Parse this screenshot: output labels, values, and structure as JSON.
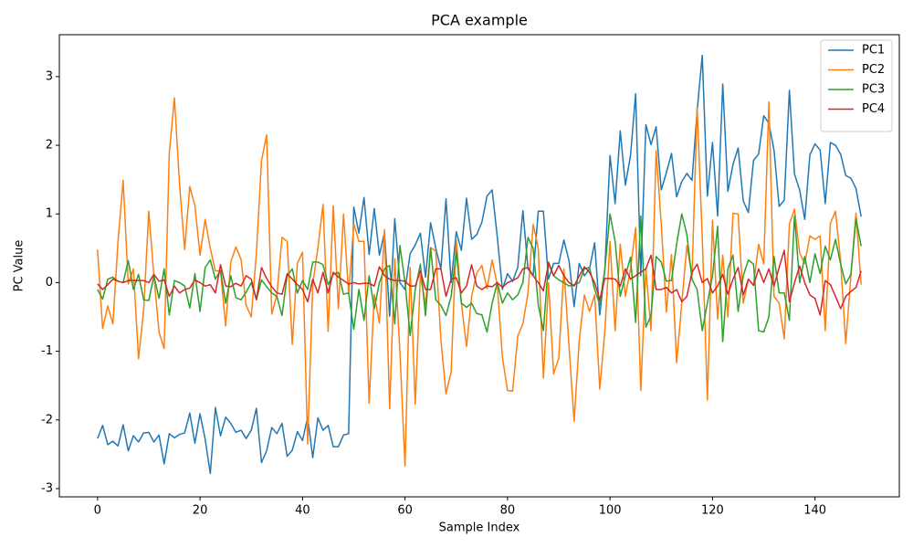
{
  "chart_data": {
    "type": "line",
    "title": "PCA example",
    "xlabel": "Sample Index",
    "ylabel": "PC Value",
    "xlim": [
      -7.45,
      156.45
    ],
    "ylim": [
      -3.12,
      3.61
    ],
    "xticks": [
      0,
      20,
      40,
      60,
      80,
      100,
      120,
      140
    ],
    "yticks": [
      -3,
      -2,
      -1,
      0,
      1,
      2,
      3
    ],
    "grid": false,
    "legend": "upper right",
    "x": [
      0,
      1,
      2,
      3,
      4,
      5,
      6,
      7,
      8,
      9,
      10,
      11,
      12,
      13,
      14,
      15,
      16,
      17,
      18,
      19,
      20,
      21,
      22,
      23,
      24,
      25,
      26,
      27,
      28,
      29,
      30,
      31,
      32,
      33,
      34,
      35,
      36,
      37,
      38,
      39,
      40,
      41,
      42,
      43,
      44,
      45,
      46,
      47,
      48,
      49,
      50,
      51,
      52,
      53,
      54,
      55,
      56,
      57,
      58,
      59,
      60,
      61,
      62,
      63,
      64,
      65,
      66,
      67,
      68,
      69,
      70,
      71,
      72,
      73,
      74,
      75,
      76,
      77,
      78,
      79,
      80,
      81,
      82,
      83,
      84,
      85,
      86,
      87,
      88,
      89,
      90,
      91,
      92,
      93,
      94,
      95,
      96,
      97,
      98,
      99,
      100,
      101,
      102,
      103,
      104,
      105,
      106,
      107,
      108,
      109,
      110,
      111,
      112,
      113,
      114,
      115,
      116,
      117,
      118,
      119,
      120,
      121,
      122,
      123,
      124,
      125,
      126,
      127,
      128,
      129,
      130,
      131,
      132,
      133,
      134,
      135,
      136,
      137,
      138,
      139,
      140,
      141,
      142,
      143,
      144,
      145,
      146,
      147,
      148,
      149
    ],
    "series": [
      {
        "name": "PC1",
        "color": "#1f77b4",
        "values": [
          -2.27,
          -2.08,
          -2.36,
          -2.31,
          -2.38,
          -2.07,
          -2.45,
          -2.23,
          -2.32,
          -2.19,
          -2.18,
          -2.32,
          -2.22,
          -2.64,
          -2.2,
          -2.26,
          -2.21,
          -2.19,
          -1.9,
          -2.34,
          -1.91,
          -2.28,
          -2.78,
          -1.82,
          -2.23,
          -1.96,
          -2.05,
          -2.18,
          -2.15,
          -2.27,
          -2.15,
          -1.83,
          -2.62,
          -2.45,
          -2.11,
          -2.2,
          -2.05,
          -2.53,
          -2.44,
          -2.17,
          -2.3,
          -1.96,
          -2.55,
          -1.97,
          -2.15,
          -2.08,
          -2.39,
          -2.39,
          -2.22,
          -2.2,
          1.1,
          0.72,
          1.24,
          0.41,
          1.08,
          0.4,
          0.73,
          -0.49,
          0.93,
          0.0,
          -0.1,
          0.42,
          0.55,
          0.72,
          0.08,
          0.87,
          0.5,
          0.2,
          1.22,
          0.0,
          0.74,
          0.47,
          1.23,
          0.63,
          0.7,
          0.88,
          1.26,
          1.35,
          0.67,
          -0.1,
          0.13,
          0.02,
          0.22,
          1.05,
          0.2,
          0.1,
          1.04,
          1.04,
          0.05,
          0.28,
          0.28,
          0.62,
          0.32,
          -0.35,
          0.28,
          0.1,
          0.2,
          0.58,
          -0.47,
          0.2,
          1.85,
          1.15,
          2.21,
          1.42,
          1.85,
          2.75,
          0.1,
          2.3,
          2.01,
          2.27,
          1.35,
          1.6,
          1.88,
          1.25,
          1.47,
          1.59,
          1.49,
          2.5,
          3.31,
          1.26,
          2.04,
          0.97,
          2.89,
          1.33,
          1.72,
          1.96,
          1.19,
          1.02,
          1.78,
          1.87,
          2.43,
          2.32,
          1.93,
          1.11,
          1.2,
          2.8,
          1.58,
          1.35,
          0.92,
          1.86,
          2.02,
          1.93,
          1.15,
          2.04,
          2.0,
          1.87,
          1.56,
          1.52,
          1.37,
          0.96
        ]
      },
      {
        "name": "PC2",
        "color": "#ff7f0e",
        "values": [
          0.48,
          -0.67,
          -0.34,
          -0.6,
          0.6,
          1.49,
          -0.02,
          0.2,
          -1.11,
          -0.4,
          1.04,
          0.1,
          -0.72,
          -0.96,
          1.88,
          2.69,
          1.44,
          0.48,
          1.4,
          1.12,
          0.4,
          0.92,
          0.5,
          0.17,
          0.17,
          -0.63,
          0.3,
          0.52,
          0.34,
          -0.33,
          -0.5,
          0.43,
          1.78,
          2.15,
          -0.46,
          -0.18,
          0.66,
          0.6,
          -0.9,
          0.28,
          0.44,
          -2.35,
          -0.02,
          0.5,
          1.14,
          -0.71,
          1.12,
          -0.38,
          1.0,
          -0.17,
          0.86,
          0.6,
          0.6,
          -1.76,
          -0.17,
          -0.59,
          0.77,
          -1.84,
          0.35,
          -1.0,
          -2.67,
          0.22,
          -1.77,
          0.1,
          -0.32,
          0.51,
          0.46,
          -0.83,
          -1.62,
          -1.3,
          0.63,
          -0.3,
          -0.93,
          -0.2,
          0.14,
          0.25,
          -0.09,
          0.33,
          -0.03,
          -1.08,
          -1.57,
          -1.58,
          -0.78,
          -0.6,
          -0.15,
          0.85,
          0.5,
          -1.39,
          0.0,
          -1.33,
          -1.1,
          0.2,
          -0.92,
          -2.02,
          -0.84,
          -0.18,
          -0.42,
          -0.18,
          -1.55,
          -0.7,
          0.6,
          -0.7,
          0.56,
          -0.2,
          0.2,
          0.8,
          -1.57,
          0.2,
          -0.7,
          1.92,
          0.85,
          -0.43,
          0.41,
          -1.17,
          -0.3,
          0.54,
          0.1,
          2.56,
          0.66,
          -1.71,
          0.91,
          -0.53,
          0.4,
          -0.5,
          1.01,
          1.0,
          -0.3,
          0.05,
          -0.04,
          0.56,
          0.27,
          2.63,
          -0.2,
          -0.3,
          -0.82,
          0.85,
          1.07,
          0.43,
          0.28,
          0.68,
          0.63,
          0.68,
          -0.7,
          0.86,
          1.04,
          0.31,
          -0.89,
          0.1,
          1.01,
          -0.03
        ]
      },
      {
        "name": "PC3",
        "color": "#2ca02c",
        "values": [
          -0.1,
          -0.24,
          0.05,
          0.08,
          0.02,
          0.0,
          0.32,
          -0.1,
          0.12,
          -0.25,
          -0.26,
          0.1,
          -0.23,
          0.2,
          -0.47,
          0.03,
          0.0,
          -0.05,
          -0.37,
          0.13,
          -0.42,
          0.22,
          0.33,
          0.05,
          0.18,
          -0.3,
          0.1,
          -0.22,
          -0.25,
          -0.14,
          0.0,
          -0.25,
          0.04,
          -0.06,
          -0.15,
          -0.2,
          -0.48,
          0.1,
          0.2,
          -0.15,
          0.03,
          -0.1,
          0.3,
          0.3,
          0.26,
          -0.03,
          0.12,
          0.15,
          -0.17,
          -0.15,
          -0.68,
          -0.1,
          -0.55,
          0.1,
          -0.38,
          0.0,
          0.2,
          0.25,
          -0.6,
          0.54,
          0.0,
          -0.77,
          -0.1,
          0.27,
          -0.48,
          0.5,
          -0.25,
          -0.33,
          -0.48,
          -0.2,
          0.45,
          -0.3,
          -0.36,
          -0.3,
          -0.45,
          -0.47,
          -0.72,
          -0.3,
          0.0,
          -0.3,
          -0.15,
          -0.25,
          -0.18,
          0.0,
          0.66,
          0.5,
          -0.32,
          -0.7,
          0.3,
          0.1,
          0.04,
          0.0,
          -0.05,
          -0.03,
          0.0,
          0.2,
          0.22,
          -0.1,
          -0.32,
          0.2,
          1.0,
          0.6,
          -0.2,
          0.1,
          0.37,
          -0.58,
          0.97,
          -0.65,
          -0.48,
          0.38,
          0.3,
          0.02,
          0.03,
          0.56,
          1.0,
          0.7,
          0.05,
          -0.1,
          -0.7,
          -0.3,
          0.1,
          0.82,
          -0.86,
          0.2,
          0.4,
          -0.42,
          0.1,
          0.33,
          0.27,
          -0.7,
          -0.72,
          -0.5,
          0.38,
          -0.15,
          -0.15,
          -0.55,
          0.97,
          0.0,
          0.38,
          0.0,
          0.42,
          0.13,
          0.53,
          0.33,
          0.63,
          0.27,
          -0.02,
          0.12,
          0.93,
          0.53
        ]
      },
      {
        "name": "PC4",
        "color": "#d62728",
        "values": [
          -0.02,
          -0.1,
          -0.03,
          0.05,
          0.02,
          0.0,
          0.03,
          0.03,
          0.03,
          0.03,
          0.0,
          0.12,
          0.02,
          0.04,
          -0.2,
          -0.05,
          -0.15,
          -0.1,
          -0.08,
          0.04,
          0.0,
          -0.05,
          -0.03,
          -0.15,
          0.26,
          -0.05,
          -0.06,
          -0.01,
          -0.05,
          0.1,
          0.05,
          -0.25,
          0.22,
          0.06,
          -0.06,
          -0.15,
          -0.17,
          0.13,
          0.05,
          -0.03,
          -0.1,
          -0.28,
          0.05,
          -0.15,
          0.15,
          -0.15,
          0.15,
          0.08,
          0.03,
          -0.02,
          0.0,
          -0.02,
          -0.01,
          -0.01,
          -0.05,
          0.23,
          0.1,
          0.05,
          0.03,
          0.03,
          0.02,
          -0.05,
          -0.05,
          0.17,
          -0.1,
          -0.1,
          0.2,
          0.2,
          -0.2,
          0.05,
          0.07,
          -0.15,
          -0.05,
          0.26,
          -0.05,
          -0.1,
          -0.05,
          -0.06,
          0.0,
          -0.07,
          0.0,
          0.03,
          0.07,
          0.2,
          0.22,
          0.1,
          0.0,
          -0.12,
          0.28,
          0.1,
          0.25,
          0.1,
          0.0,
          -0.05,
          0.1,
          0.23,
          0.15,
          0.0,
          -0.25,
          0.06,
          0.06,
          0.05,
          -0.05,
          0.2,
          0.05,
          0.1,
          0.15,
          0.2,
          0.4,
          -0.1,
          -0.1,
          -0.07,
          -0.15,
          -0.1,
          -0.28,
          -0.2,
          0.15,
          0.27,
          0.0,
          0.06,
          -0.15,
          -0.05,
          0.12,
          -0.17,
          0.05,
          0.22,
          -0.18,
          0.05,
          -0.04,
          0.2,
          0.0,
          0.2,
          -0.05,
          0.22,
          0.47,
          -0.28,
          0.0,
          0.24,
          0.0,
          -0.18,
          -0.23,
          -0.47,
          0.03,
          -0.03,
          -0.2,
          -0.38,
          -0.2,
          -0.13,
          -0.07,
          0.17
        ]
      }
    ]
  }
}
